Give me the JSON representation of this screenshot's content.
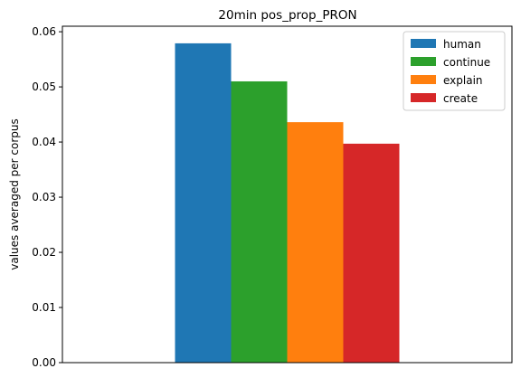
{
  "chart_data": {
    "type": "bar",
    "title": "20min pos_prop_PRON",
    "xlabel": "",
    "ylabel": "values averaged per corpus",
    "ylim": [
      0,
      0.061
    ],
    "yticks": [
      "0.00",
      "0.01",
      "0.02",
      "0.03",
      "0.04",
      "0.05",
      "0.06"
    ],
    "categories": [
      ""
    ],
    "series": [
      {
        "name": "human",
        "values": [
          0.0579
        ],
        "color": "#1f77b4"
      },
      {
        "name": "continue",
        "values": [
          0.051
        ],
        "color": "#2ca02c"
      },
      {
        "name": "explain",
        "values": [
          0.0436
        ],
        "color": "#ff7f0e"
      },
      {
        "name": "create",
        "values": [
          0.0397
        ],
        "color": "#d62728"
      }
    ],
    "legend_position": "top-right",
    "grid": false
  }
}
